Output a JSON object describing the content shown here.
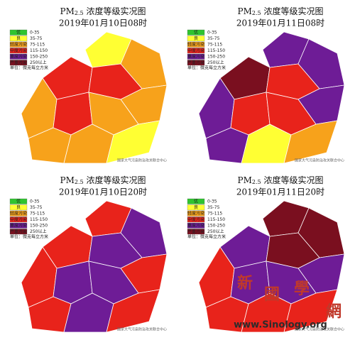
{
  "title_prefix": "PM",
  "title_sub": "2.5",
  "title_rest": " 浓度等级实况图",
  "legend": [
    {
      "label": "优",
      "range": "0-35",
      "color": "#2fc42f"
    },
    {
      "label": "良",
      "range": "35-75",
      "color": "#ffff33"
    },
    {
      "label": "轻度污染",
      "range": "75-115",
      "color": "#f7a21b"
    },
    {
      "label": "中度污染",
      "range": "115-150",
      "color": "#e8231b"
    },
    {
      "label": "重度污染",
      "range": "150-250",
      "color": "#6e1c96"
    },
    {
      "label": "严重污染",
      "range": "250以上",
      "color": "#7a0f1f"
    }
  ],
  "unit": "单位：微克每立方米",
  "source": "国家大气污染防治攻关联合中心",
  "panels": [
    {
      "date": "2019年01月10日08时"
    },
    {
      "date": "2019年01月11日08时"
    },
    {
      "date": "2019年01月10日20时"
    },
    {
      "date": "2019年01月11日20时"
    }
  ],
  "watermark": {
    "chars": [
      "新",
      "國",
      "學",
      "網"
    ],
    "url": "www.Sinology.org"
  }
}
